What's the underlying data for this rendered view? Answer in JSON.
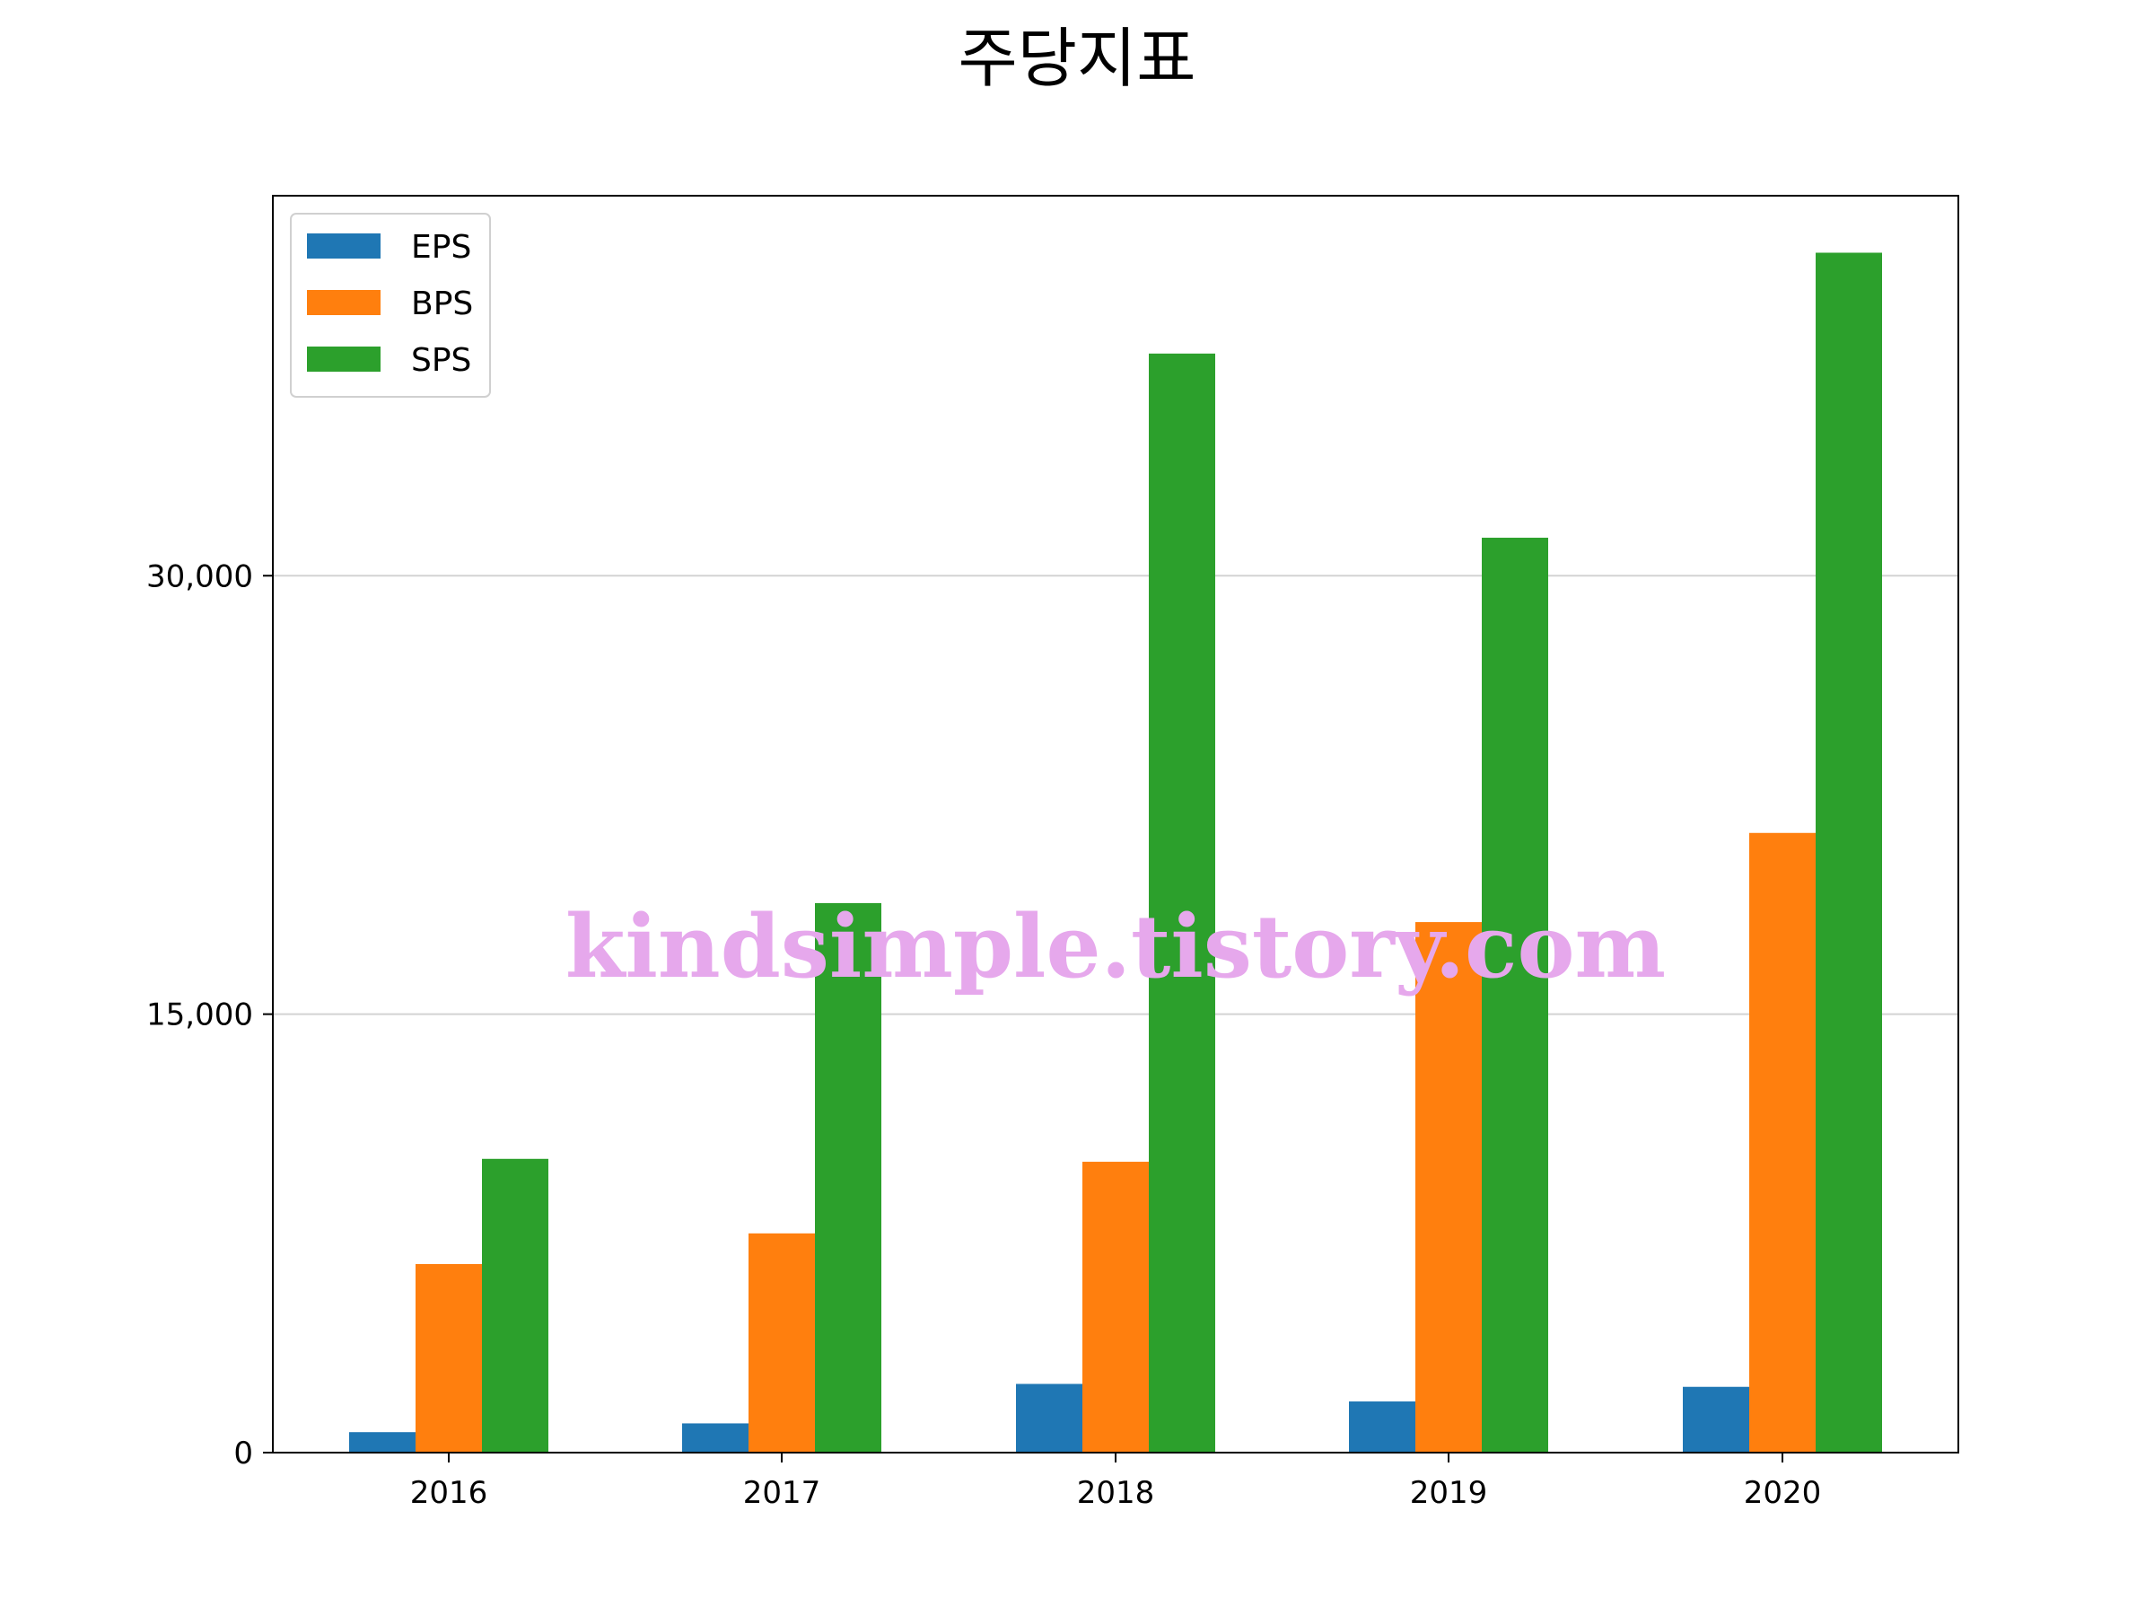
{
  "chart_data": {
    "type": "bar",
    "title": "주당지표",
    "xlabel": "",
    "ylabel": "",
    "categories": [
      "2016",
      "2017",
      "2018",
      "2019",
      "2020"
    ],
    "series": [
      {
        "name": "EPS",
        "color": "#1f77b4",
        "values": [
          700,
          1000,
          2350,
          1750,
          2250
        ]
      },
      {
        "name": "BPS",
        "color": "#ff7f0e",
        "values": [
          6450,
          7500,
          9950,
          18150,
          21200
        ]
      },
      {
        "name": "SPS",
        "color": "#2ca02c",
        "values": [
          10050,
          18800,
          37600,
          31300,
          41050
        ]
      }
    ],
    "ylim": [
      0,
      43000
    ],
    "yticks": [
      0,
      15000,
      30000
    ],
    "ytick_labels": [
      "0",
      "15,000",
      "30,000"
    ],
    "grid": "y",
    "legend_position": "top-left",
    "watermark": "kindsimple.tistory.com"
  }
}
